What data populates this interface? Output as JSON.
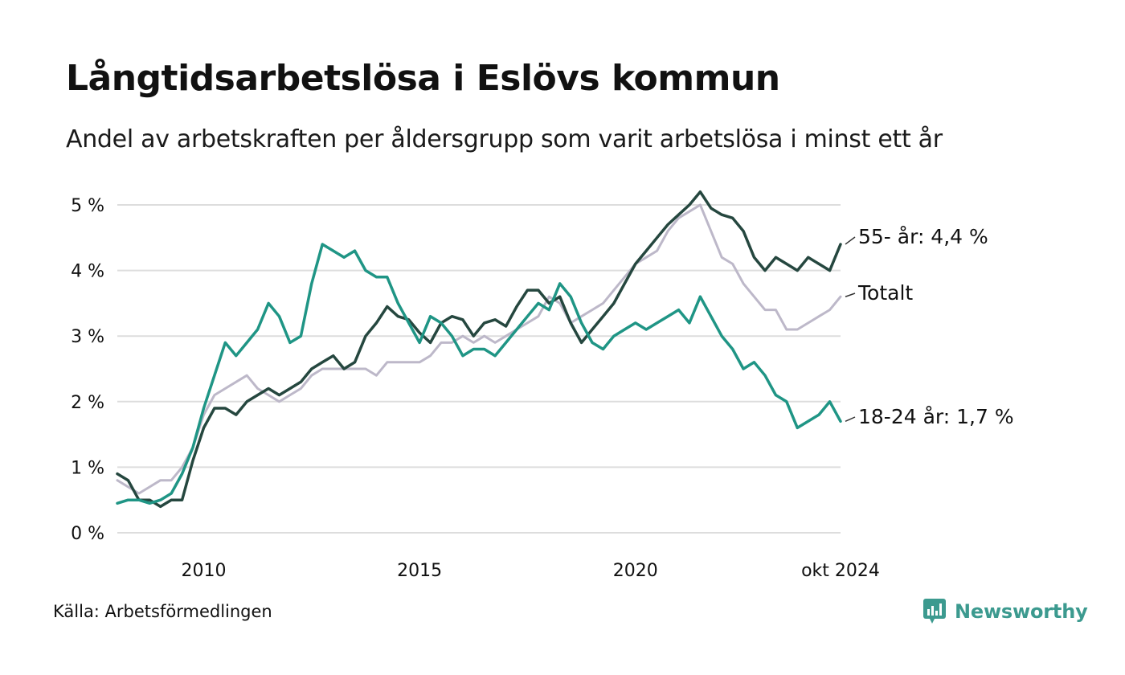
{
  "header": {
    "title": "Långtidsarbetslösa i Eslövs kommun",
    "subtitle": "Andel av arbetskraften per åldersgrupp som varit arbetslösa i minst ett år"
  },
  "footer": {
    "source": "Källa: Arbetsförmedlingen",
    "brand": "Newsworthy",
    "brand_color": "#3c9a8f",
    "brand_icon": "bar-chart-bubble-icon"
  },
  "chart_data": {
    "type": "line",
    "ylim": [
      0,
      5
    ],
    "xlim": [
      2008.0,
      2024.75
    ],
    "y_ticks": [
      0,
      1,
      2,
      3,
      4,
      5
    ],
    "y_tick_labels": [
      "0 %",
      "1 %",
      "2 %",
      "3 %",
      "4 %",
      "5 %"
    ],
    "x_ticks": [
      2010,
      2015,
      2020,
      2024.75
    ],
    "x_tick_labels": [
      "2010",
      "2015",
      "2020",
      "okt 2024"
    ],
    "grid": true,
    "series": [
      {
        "name": "Totalt",
        "label": "Totalt",
        "color": "#bdb8c9",
        "points": [
          [
            2008.0,
            0.8
          ],
          [
            2008.25,
            0.7
          ],
          [
            2008.5,
            0.6
          ],
          [
            2008.75,
            0.7
          ],
          [
            2009.0,
            0.8
          ],
          [
            2009.25,
            0.8
          ],
          [
            2009.5,
            1.0
          ],
          [
            2009.75,
            1.3
          ],
          [
            2010.0,
            1.8
          ],
          [
            2010.25,
            2.1
          ],
          [
            2010.5,
            2.2
          ],
          [
            2010.75,
            2.3
          ],
          [
            2011.0,
            2.4
          ],
          [
            2011.25,
            2.2
          ],
          [
            2011.5,
            2.1
          ],
          [
            2011.75,
            2.0
          ],
          [
            2012.0,
            2.1
          ],
          [
            2012.25,
            2.2
          ],
          [
            2012.5,
            2.4
          ],
          [
            2012.75,
            2.5
          ],
          [
            2013.0,
            2.5
          ],
          [
            2013.25,
            2.5
          ],
          [
            2013.5,
            2.5
          ],
          [
            2013.75,
            2.5
          ],
          [
            2014.0,
            2.4
          ],
          [
            2014.25,
            2.6
          ],
          [
            2014.5,
            2.6
          ],
          [
            2014.75,
            2.6
          ],
          [
            2015.0,
            2.6
          ],
          [
            2015.25,
            2.7
          ],
          [
            2015.5,
            2.9
          ],
          [
            2015.75,
            2.9
          ],
          [
            2016.0,
            3.0
          ],
          [
            2016.25,
            2.9
          ],
          [
            2016.5,
            3.0
          ],
          [
            2016.75,
            2.9
          ],
          [
            2017.0,
            3.0
          ],
          [
            2017.25,
            3.1
          ],
          [
            2017.5,
            3.2
          ],
          [
            2017.75,
            3.3
          ],
          [
            2018.0,
            3.6
          ],
          [
            2018.25,
            3.5
          ],
          [
            2018.5,
            3.2
          ],
          [
            2018.75,
            3.3
          ],
          [
            2019.0,
            3.4
          ],
          [
            2019.25,
            3.5
          ],
          [
            2019.5,
            3.7
          ],
          [
            2019.75,
            3.9
          ],
          [
            2020.0,
            4.1
          ],
          [
            2020.25,
            4.2
          ],
          [
            2020.5,
            4.3
          ],
          [
            2020.75,
            4.6
          ],
          [
            2021.0,
            4.8
          ],
          [
            2021.25,
            4.9
          ],
          [
            2021.5,
            5.0
          ],
          [
            2021.75,
            4.6
          ],
          [
            2022.0,
            4.2
          ],
          [
            2022.25,
            4.1
          ],
          [
            2022.5,
            3.8
          ],
          [
            2022.75,
            3.6
          ],
          [
            2023.0,
            3.4
          ],
          [
            2023.25,
            3.4
          ],
          [
            2023.5,
            3.1
          ],
          [
            2023.75,
            3.1
          ],
          [
            2024.0,
            3.2
          ],
          [
            2024.25,
            3.3
          ],
          [
            2024.5,
            3.4
          ],
          [
            2024.75,
            3.6
          ]
        ]
      },
      {
        "name": "55- år",
        "label": "55- år: 4,4 %",
        "color": "#25473f",
        "points": [
          [
            2008.0,
            0.9
          ],
          [
            2008.25,
            0.8
          ],
          [
            2008.5,
            0.5
          ],
          [
            2008.75,
            0.5
          ],
          [
            2009.0,
            0.4
          ],
          [
            2009.25,
            0.5
          ],
          [
            2009.5,
            0.5
          ],
          [
            2009.75,
            1.1
          ],
          [
            2010.0,
            1.6
          ],
          [
            2010.25,
            1.9
          ],
          [
            2010.5,
            1.9
          ],
          [
            2010.75,
            1.8
          ],
          [
            2011.0,
            2.0
          ],
          [
            2011.25,
            2.1
          ],
          [
            2011.5,
            2.2
          ],
          [
            2011.75,
            2.1
          ],
          [
            2012.0,
            2.2
          ],
          [
            2012.25,
            2.3
          ],
          [
            2012.5,
            2.5
          ],
          [
            2012.75,
            2.6
          ],
          [
            2013.0,
            2.7
          ],
          [
            2013.25,
            2.5
          ],
          [
            2013.5,
            2.6
          ],
          [
            2013.75,
            3.0
          ],
          [
            2014.0,
            3.2
          ],
          [
            2014.25,
            3.45
          ],
          [
            2014.5,
            3.3
          ],
          [
            2014.75,
            3.25
          ],
          [
            2015.0,
            3.05
          ],
          [
            2015.25,
            2.9
          ],
          [
            2015.5,
            3.2
          ],
          [
            2015.75,
            3.3
          ],
          [
            2016.0,
            3.25
          ],
          [
            2016.25,
            3.0
          ],
          [
            2016.5,
            3.2
          ],
          [
            2016.75,
            3.25
          ],
          [
            2017.0,
            3.15
          ],
          [
            2017.25,
            3.45
          ],
          [
            2017.5,
            3.7
          ],
          [
            2017.75,
            3.7
          ],
          [
            2018.0,
            3.5
          ],
          [
            2018.25,
            3.6
          ],
          [
            2018.5,
            3.2
          ],
          [
            2018.75,
            2.9
          ],
          [
            2019.0,
            3.1
          ],
          [
            2019.25,
            3.3
          ],
          [
            2019.5,
            3.5
          ],
          [
            2019.75,
            3.8
          ],
          [
            2020.0,
            4.1
          ],
          [
            2020.25,
            4.3
          ],
          [
            2020.5,
            4.5
          ],
          [
            2020.75,
            4.7
          ],
          [
            2021.0,
            4.85
          ],
          [
            2021.25,
            5.0
          ],
          [
            2021.5,
            5.2
          ],
          [
            2021.75,
            4.95
          ],
          [
            2022.0,
            4.85
          ],
          [
            2022.25,
            4.8
          ],
          [
            2022.5,
            4.6
          ],
          [
            2022.75,
            4.2
          ],
          [
            2023.0,
            4.0
          ],
          [
            2023.25,
            4.2
          ],
          [
            2023.5,
            4.1
          ],
          [
            2023.75,
            4.0
          ],
          [
            2024.0,
            4.2
          ],
          [
            2024.25,
            4.1
          ],
          [
            2024.5,
            4.0
          ],
          [
            2024.75,
            4.4
          ]
        ]
      },
      {
        "name": "18-24 år",
        "label": "18-24 år: 1,7 %",
        "color": "#1f9585",
        "points": [
          [
            2008.0,
            0.45
          ],
          [
            2008.25,
            0.5
          ],
          [
            2008.5,
            0.5
          ],
          [
            2008.75,
            0.45
          ],
          [
            2009.0,
            0.5
          ],
          [
            2009.25,
            0.6
          ],
          [
            2009.5,
            0.9
          ],
          [
            2009.75,
            1.3
          ],
          [
            2010.0,
            1.9
          ],
          [
            2010.25,
            2.4
          ],
          [
            2010.5,
            2.9
          ],
          [
            2010.75,
            2.7
          ],
          [
            2011.0,
            2.9
          ],
          [
            2011.25,
            3.1
          ],
          [
            2011.5,
            3.5
          ],
          [
            2011.75,
            3.3
          ],
          [
            2012.0,
            2.9
          ],
          [
            2012.25,
            3.0
          ],
          [
            2012.5,
            3.8
          ],
          [
            2012.75,
            4.4
          ],
          [
            2013.0,
            4.3
          ],
          [
            2013.25,
            4.2
          ],
          [
            2013.5,
            4.3
          ],
          [
            2013.75,
            4.0
          ],
          [
            2014.0,
            3.9
          ],
          [
            2014.25,
            3.9
          ],
          [
            2014.5,
            3.5
          ],
          [
            2014.75,
            3.2
          ],
          [
            2015.0,
            2.9
          ],
          [
            2015.25,
            3.3
          ],
          [
            2015.5,
            3.2
          ],
          [
            2015.75,
            3.0
          ],
          [
            2016.0,
            2.7
          ],
          [
            2016.25,
            2.8
          ],
          [
            2016.5,
            2.8
          ],
          [
            2016.75,
            2.7
          ],
          [
            2017.0,
            2.9
          ],
          [
            2017.25,
            3.1
          ],
          [
            2017.5,
            3.3
          ],
          [
            2017.75,
            3.5
          ],
          [
            2018.0,
            3.4
          ],
          [
            2018.25,
            3.8
          ],
          [
            2018.5,
            3.6
          ],
          [
            2018.75,
            3.2
          ],
          [
            2019.0,
            2.9
          ],
          [
            2019.25,
            2.8
          ],
          [
            2019.5,
            3.0
          ],
          [
            2019.75,
            3.1
          ],
          [
            2020.0,
            3.2
          ],
          [
            2020.25,
            3.1
          ],
          [
            2020.5,
            3.2
          ],
          [
            2020.75,
            3.3
          ],
          [
            2021.0,
            3.4
          ],
          [
            2021.25,
            3.2
          ],
          [
            2021.5,
            3.6
          ],
          [
            2021.75,
            3.3
          ],
          [
            2022.0,
            3.0
          ],
          [
            2022.25,
            2.8
          ],
          [
            2022.5,
            2.5
          ],
          [
            2022.75,
            2.6
          ],
          [
            2023.0,
            2.4
          ],
          [
            2023.25,
            2.1
          ],
          [
            2023.5,
            2.0
          ],
          [
            2023.75,
            1.6
          ],
          [
            2024.0,
            1.7
          ],
          [
            2024.25,
            1.8
          ],
          [
            2024.5,
            2.0
          ],
          [
            2024.75,
            1.7
          ]
        ]
      }
    ]
  }
}
